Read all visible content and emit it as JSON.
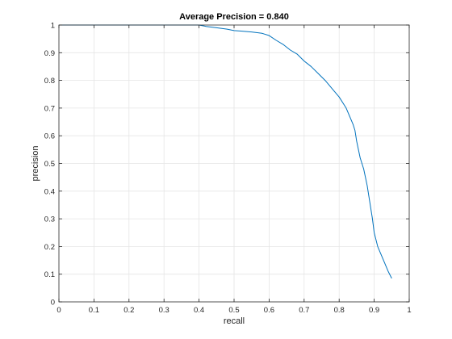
{
  "chart_data": {
    "type": "line",
    "title": "Average Precision = 0.840",
    "xlabel": "recall",
    "ylabel": "precision",
    "xlim": [
      0,
      1
    ],
    "ylim": [
      0,
      1
    ],
    "grid": true,
    "legend": "none",
    "x_ticks": [
      "0",
      "0.1",
      "0.2",
      "0.3",
      "0.4",
      "0.5",
      "0.6",
      "0.7",
      "0.8",
      "0.9",
      "1"
    ],
    "y_ticks": [
      "0",
      "0.1",
      "0.2",
      "0.3",
      "0.4",
      "0.5",
      "0.6",
      "0.7",
      "0.8",
      "0.9",
      "1"
    ],
    "colors": {
      "line": "#0072bd",
      "grid": "#e5e5e5",
      "axis": "#262626"
    },
    "series": [
      {
        "x": [
          0.0,
          0.05,
          0.1,
          0.15,
          0.2,
          0.25,
          0.3,
          0.35,
          0.4,
          0.42,
          0.45,
          0.48,
          0.5,
          0.52,
          0.55,
          0.58,
          0.6,
          0.62,
          0.64,
          0.66,
          0.68,
          0.7,
          0.72,
          0.74,
          0.76,
          0.78,
          0.8,
          0.82,
          0.83,
          0.84,
          0.845,
          0.85,
          0.855,
          0.86,
          0.865,
          0.87,
          0.875,
          0.88,
          0.885,
          0.89,
          0.895,
          0.9,
          0.91,
          0.92,
          0.93,
          0.94,
          0.95
        ],
        "y": [
          1.0,
          1.0,
          1.0,
          1.0,
          1.0,
          1.0,
          1.0,
          1.0,
          1.0,
          0.995,
          0.99,
          0.985,
          0.98,
          0.978,
          0.975,
          0.97,
          0.962,
          0.945,
          0.93,
          0.91,
          0.895,
          0.87,
          0.85,
          0.825,
          0.8,
          0.77,
          0.74,
          0.7,
          0.67,
          0.64,
          0.62,
          0.58,
          0.55,
          0.52,
          0.5,
          0.48,
          0.45,
          0.42,
          0.38,
          0.34,
          0.3,
          0.25,
          0.2,
          0.17,
          0.14,
          0.11,
          0.085
        ]
      }
    ]
  }
}
